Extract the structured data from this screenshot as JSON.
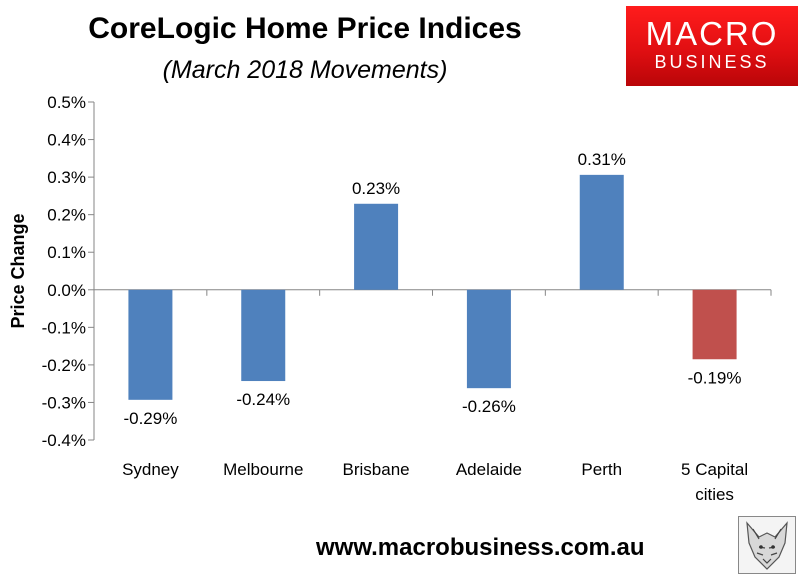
{
  "header": {
    "title": "CoreLogic Home Price Indices",
    "subtitle": "(March 2018 Movements)"
  },
  "logo": {
    "line1": "MACRO",
    "line2": "BUSINESS"
  },
  "footer": {
    "url": "www.macrobusiness.com.au"
  },
  "chart_data": {
    "type": "bar",
    "title": "CoreLogic Home Price Indices",
    "subtitle": "(March 2018 Movements)",
    "ylabel": "Price Change",
    "xlabel": "",
    "categories": [
      "Sydney",
      "Melbourne",
      "Brisbane",
      "Adelaide",
      "Perth",
      "5 Capital cities"
    ],
    "category_lines": [
      [
        "Sydney"
      ],
      [
        "Melbourne"
      ],
      [
        "Brisbane"
      ],
      [
        "Adelaide"
      ],
      [
        "Perth"
      ],
      [
        "5 Capital",
        "cities"
      ]
    ],
    "values": [
      -0.29,
      -0.24,
      0.23,
      -0.26,
      0.31,
      -0.19
    ],
    "bar_heights": [
      -0.293,
      -0.243,
      0.229,
      -0.262,
      0.306,
      -0.185
    ],
    "data_labels": [
      "-0.29%",
      "-0.24%",
      "0.23%",
      "-0.26%",
      "0.31%",
      "-0.19%"
    ],
    "bar_colors": [
      "#4f81bd",
      "#4f81bd",
      "#4f81bd",
      "#4f81bd",
      "#4f81bd",
      "#c0504d"
    ],
    "ylim": [
      -0.4,
      0.5
    ],
    "yticks": [
      0.5,
      0.4,
      0.3,
      0.2,
      0.1,
      0.0,
      -0.1,
      -0.2,
      -0.3,
      -0.4
    ],
    "ytick_labels": [
      "0.5%",
      "0.4%",
      "0.3%",
      "0.2%",
      "0.1%",
      "0.0%",
      "-0.1%",
      "-0.2%",
      "-0.3%",
      "-0.4%"
    ],
    "grid": false,
    "legend": "none"
  }
}
